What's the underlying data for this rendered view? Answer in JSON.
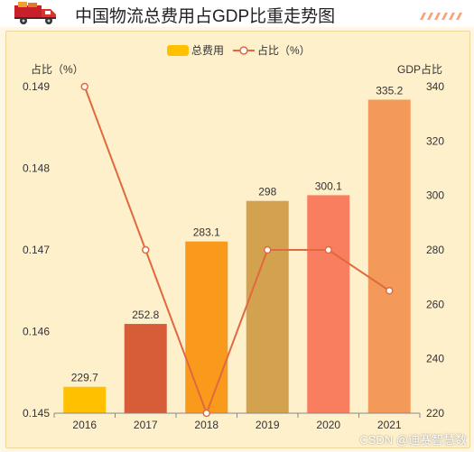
{
  "header": {
    "title": "中国物流总费用占GDP比重走势图",
    "icon": "truck-icon"
  },
  "watermark": "CSDN @迪赛智慧数",
  "colors": {
    "background": "#fff0cc",
    "line": "#e0693f",
    "bars": [
      "#ffc000",
      "#d65d38",
      "#f99a1d",
      "#d2a24f",
      "#f87e5f",
      "#f39a5a"
    ]
  },
  "chart_data": {
    "type": "bar",
    "categories": [
      "2016",
      "2017",
      "2018",
      "2019",
      "2020",
      "2021"
    ],
    "series": [
      {
        "name": "总费用",
        "type": "bar",
        "axis": "right",
        "values": [
          229.7,
          252.8,
          283.1,
          298,
          300.1,
          335.2
        ]
      },
      {
        "name": "占比（%）",
        "type": "line",
        "axis": "left",
        "values": [
          0.149,
          0.147,
          0.145,
          0.147,
          0.147,
          0.1465
        ]
      }
    ],
    "y_left": {
      "label": "占比（%）",
      "min": 0.145,
      "max": 0.149,
      "ticks": [
        "0.145",
        "0.146",
        "0.147",
        "0.148",
        "0.149"
      ]
    },
    "y_right": {
      "label": "GDP占比",
      "min": 220,
      "max": 340,
      "ticks": [
        "220",
        "240",
        "260",
        "280",
        "300",
        "320",
        "340"
      ]
    },
    "legend": {
      "placement": "top-center",
      "items": [
        "总费用",
        "占比（%）"
      ]
    },
    "grid": false
  }
}
